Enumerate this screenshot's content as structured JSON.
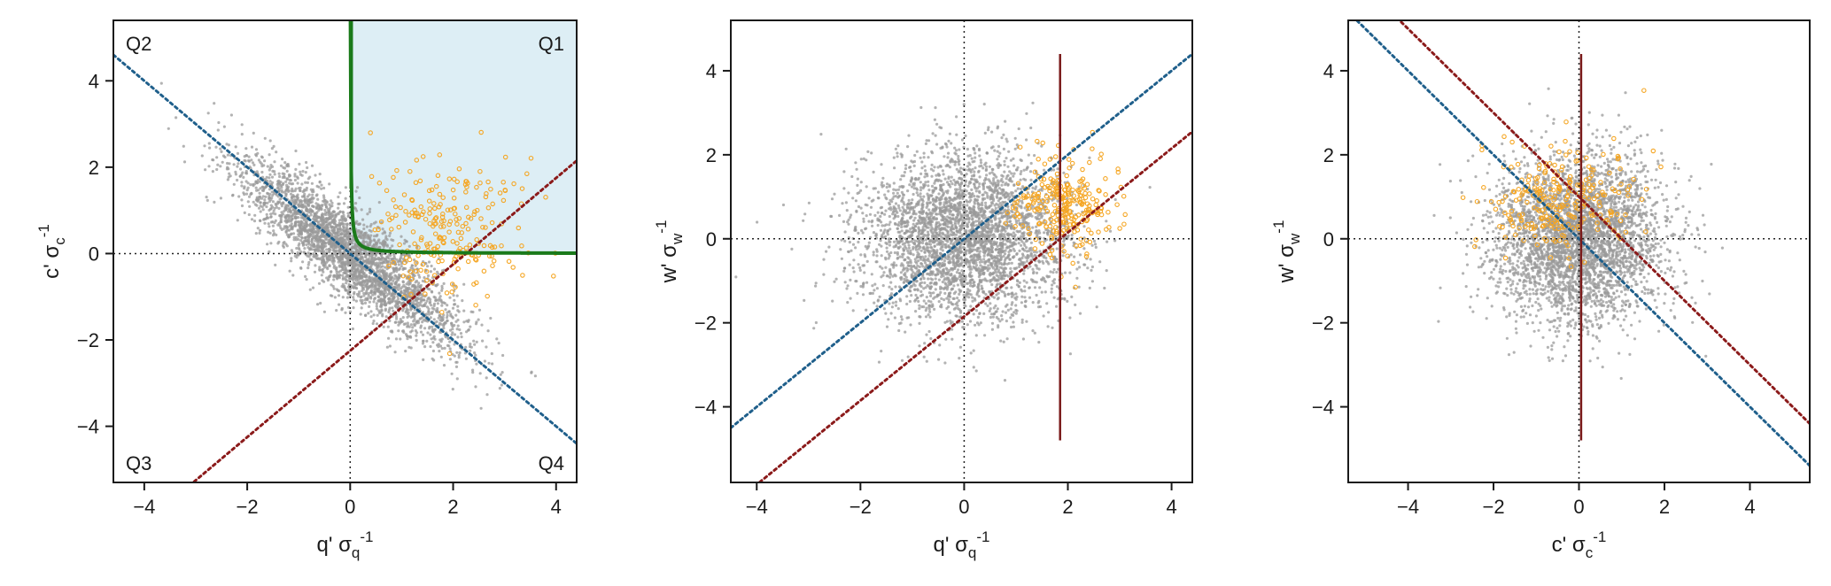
{
  "colors": {
    "scatter_grey": "#9a9a9a",
    "highlight_orange": "#f5a623",
    "blue_dotted": "#1f5f8b",
    "red_dotted": "#8b1a1a",
    "green_curve": "#1a7a1a",
    "quadrant_fill": "#ddeef5",
    "vertical_line": "#7a1a1a"
  },
  "chart_data": [
    {
      "type": "scatter",
      "panel": "left",
      "xlabel": "q' σ",
      "xlabel_sub": "q",
      "xlabel_sup": "-1",
      "ylabel": "c' σ",
      "ylabel_sub": "c",
      "ylabel_sup": "-1",
      "xlim": [
        -4.6,
        4.4
      ],
      "ylim": [
        -5.3,
        5.4
      ],
      "xticks": [
        -4,
        -2,
        0,
        2,
        4
      ],
      "yticks": [
        -4,
        -2,
        0,
        2,
        4
      ],
      "quadrant_labels": [
        "Q1",
        "Q2",
        "Q3",
        "Q4"
      ],
      "shaded_region": {
        "x_from": 0,
        "y_from": 0
      },
      "reference_lines": {
        "x0": true,
        "y0": true
      },
      "blue_line": {
        "slope": -1.0,
        "intercept": 0.0
      },
      "red_line": {
        "slope": 1.0,
        "intercept": -2.25
      },
      "grey_cloud": {
        "center": [
          0,
          0
        ],
        "spread_major": 1.45,
        "spread_minor": 0.38,
        "angle_deg": -45,
        "count": 3200
      },
      "orange_cloud": {
        "center": [
          1.9,
          0.6
        ],
        "spread_x": 0.75,
        "spread_y": 0.75,
        "count": 230
      }
    },
    {
      "type": "scatter",
      "panel": "middle",
      "xlabel": "q' σ",
      "xlabel_sub": "q",
      "xlabel_sup": "-1",
      "ylabel": "w' σ",
      "ylabel_sub": "w",
      "ylabel_sup": "-1",
      "xlim": [
        -4.5,
        4.4
      ],
      "ylim": [
        -5.8,
        5.2
      ],
      "xticks": [
        -4,
        -2,
        0,
        2,
        4
      ],
      "yticks": [
        -4,
        -2,
        0,
        2,
        4
      ],
      "reference_lines": {
        "x0": true,
        "y0": true
      },
      "blue_line": {
        "slope": 1.0,
        "intercept": 0.0
      },
      "red_line": {
        "slope": 1.0,
        "intercept": -1.85
      },
      "vertical_segment": {
        "x": 1.85,
        "y_from": -4.8,
        "y_to": 4.4
      },
      "grey_cloud": {
        "center": [
          0,
          0
        ],
        "spread_x": 1.0,
        "spread_y": 1.0,
        "count": 3600
      },
      "orange_cloud": {
        "center": [
          1.95,
          0.85
        ],
        "spread_x": 0.5,
        "spread_y": 0.55,
        "count": 260
      }
    },
    {
      "type": "scatter",
      "panel": "right",
      "xlabel": "c' σ",
      "xlabel_sub": "c",
      "xlabel_sup": "-1",
      "ylabel": "w' σ",
      "ylabel_sub": "w",
      "ylabel_sup": "-1",
      "xlim": [
        -5.4,
        5.4
      ],
      "ylim": [
        -5.8,
        5.2
      ],
      "xticks": [
        -4,
        -2,
        0,
        2,
        4
      ],
      "yticks": [
        -4,
        -2,
        0,
        2,
        4
      ],
      "reference_lines": {
        "x0": true,
        "y0": true
      },
      "blue_line": {
        "slope": -1.0,
        "intercept": 0.0
      },
      "red_line": {
        "slope": -1.0,
        "intercept": 1.0
      },
      "vertical_segment": {
        "x": 0.05,
        "y_from": -4.8,
        "y_to": 4.4
      },
      "grey_cloud": {
        "center": [
          0,
          0
        ],
        "spread_x": 1.0,
        "spread_y": 1.0,
        "count": 3600
      },
      "orange_cloud": {
        "center": [
          -0.5,
          0.9
        ],
        "spread_x": 0.85,
        "spread_y": 0.6,
        "count": 260
      }
    }
  ]
}
